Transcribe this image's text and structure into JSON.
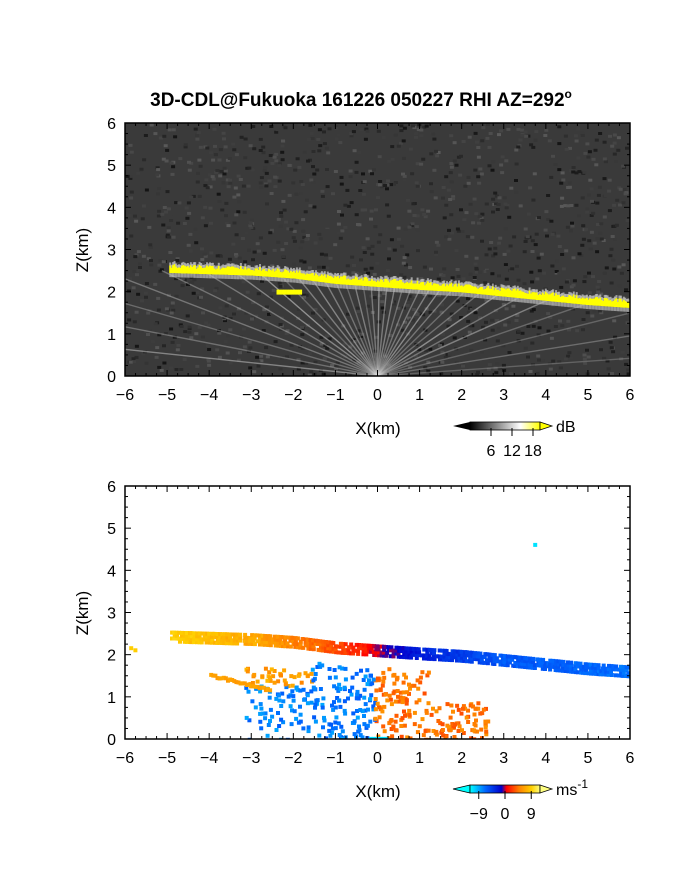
{
  "figure": {
    "title": "3D-CDL@Fukuoka 161226 050227 RHI AZ=292",
    "title_superscript": "o"
  },
  "chart_data": [
    {
      "type": "heatmap",
      "panel": "top",
      "quantity": "backscatter intensity",
      "xlabel": "X(km)",
      "ylabel": "Z(km)",
      "xlim": [
        -6,
        6
      ],
      "ylim": [
        0,
        6
      ],
      "x_ticks": [
        "-6",
        "-5",
        "-4",
        "-3",
        "-2",
        "-1",
        "0",
        "1",
        "2",
        "3",
        "4",
        "5",
        "6"
      ],
      "y_ticks": [
        "0",
        "1",
        "2",
        "3",
        "4",
        "5",
        "6"
      ],
      "background": "#3a3a3a",
      "layer_color": "#ffff00",
      "colorbar": {
        "unit": "dB",
        "ticks": [
          "6",
          "12",
          "18"
        ],
        "range": [
          0,
          20
        ],
        "colors": [
          "#000000",
          "#ffffff",
          "#ffff00"
        ]
      },
      "features": {
        "cloud_base_km": [
          {
            "x": -4.9,
            "z": 2.48
          },
          {
            "x": -3.0,
            "z": 2.42
          },
          {
            "x": -2.0,
            "z": 2.35
          },
          {
            "x": -1.0,
            "z": 2.22
          },
          {
            "x": 0.0,
            "z": 2.15
          },
          {
            "x": 1.0,
            "z": 2.08
          },
          {
            "x": 2.0,
            "z": 2.02
          },
          {
            "x": 3.0,
            "z": 1.92
          },
          {
            "x": 4.0,
            "z": 1.82
          },
          {
            "x": 5.0,
            "z": 1.72
          },
          {
            "x": 6.0,
            "z": 1.65
          }
        ]
      }
    },
    {
      "type": "heatmap",
      "panel": "bottom",
      "quantity": "radial velocity",
      "xlabel": "X(km)",
      "ylabel": "Z(km)",
      "xlim": [
        -6,
        6
      ],
      "ylim": [
        0,
        6
      ],
      "x_ticks": [
        "-6",
        "-5",
        "-4",
        "-3",
        "-2",
        "-1",
        "0",
        "1",
        "2",
        "3",
        "4",
        "5",
        "6"
      ],
      "y_ticks": [
        "0",
        "1",
        "2",
        "3",
        "4",
        "5",
        "6"
      ],
      "colorbar": {
        "unit": "ms",
        "unit_exponent": "-1",
        "ticks": [
          "-9",
          "0",
          "9"
        ],
        "range": [
          -12,
          12
        ],
        "colors": [
          "#00ffff",
          "#0066ff",
          "#0000cc",
          "#ff0000",
          "#ff8000",
          "#ffd000",
          "#ffff80"
        ]
      },
      "features": {
        "cloud_base_velocity": [
          {
            "x": -4.9,
            "z": 2.48,
            "v": 9
          },
          {
            "x": -3.0,
            "z": 2.42,
            "v": 7
          },
          {
            "x": -2.0,
            "z": 2.35,
            "v": 5
          },
          {
            "x": -1.0,
            "z": 2.22,
            "v": 3
          },
          {
            "x": 0.0,
            "z": 2.15,
            "v": 0
          },
          {
            "x": 1.0,
            "z": 2.08,
            "v": -3
          },
          {
            "x": 3.0,
            "z": 1.92,
            "v": -6
          },
          {
            "x": 6.0,
            "z": 1.65,
            "v": -7
          }
        ],
        "isolated_echo": {
          "x": 3.7,
          "z": 4.65,
          "v": -11
        }
      }
    }
  ]
}
